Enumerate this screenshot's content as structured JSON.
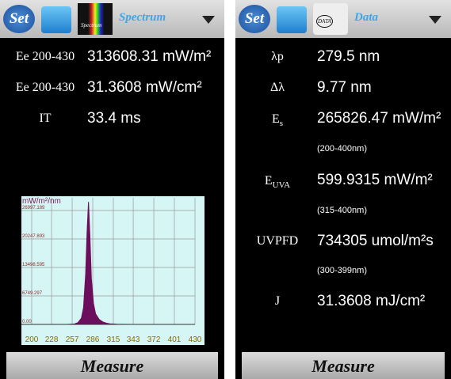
{
  "left_screen": {
    "set_icon": "Set",
    "app_icon": "Spectrum",
    "dropdown": "Spectrum",
    "rows": [
      {
        "label": "Ee 200-430",
        "value": "313608.31 mW/m²"
      },
      {
        "label": "Ee 200-430",
        "value": "31.3608 mW/cm²"
      },
      {
        "label": "IT",
        "value": "33.4 ms"
      }
    ],
    "button": "Measure"
  },
  "chart_data": {
    "type": "area",
    "ylabel": "mW/m²/nm",
    "x": [
      200,
      250,
      260,
      265,
      270,
      273,
      276,
      278,
      280,
      282,
      284,
      287,
      290,
      295,
      300,
      305,
      310,
      320,
      340,
      380,
      430
    ],
    "values": [
      0,
      0,
      100,
      400,
      1500,
      4000,
      12000,
      22000,
      29000,
      21000,
      11000,
      5000,
      2500,
      1200,
      600,
      300,
      150,
      50,
      10,
      0,
      0
    ],
    "color": "#6b0f5c",
    "background": "#d6f6f6",
    "xlim": [
      200,
      430
    ],
    "ylim": [
      0,
      30000
    ],
    "xticks": [
      200,
      228,
      257,
      286,
      315,
      343,
      372,
      401,
      430
    ],
    "yticks": [
      {
        "value": 0,
        "label": "0.00"
      },
      6749.297,
      13498.595,
      20247.893,
      26997.189
    ],
    "grid": true
  },
  "right_screen": {
    "set_icon": "Set",
    "app_icon": "DATA",
    "dropdown": "Data",
    "rows": [
      {
        "symbol": "λp",
        "value": "279.5 nm"
      },
      {
        "symbol": "Δλ",
        "value": "9.77 nm"
      },
      {
        "symbol": "E",
        "subscript": "s",
        "value": "265826.47 mW/m²",
        "note": "(200-400nm)"
      },
      {
        "symbol": "E",
        "subscript": "UVA",
        "value": "599.9315 mW/m²",
        "note": "(315-400nm)"
      },
      {
        "symbol": "UVPFD",
        "value": "734305 umol/m²s",
        "note": "(300-399nm)"
      },
      {
        "symbol": "J",
        "value": "31.3608 mJ/cm²"
      }
    ],
    "button": "Measure"
  }
}
